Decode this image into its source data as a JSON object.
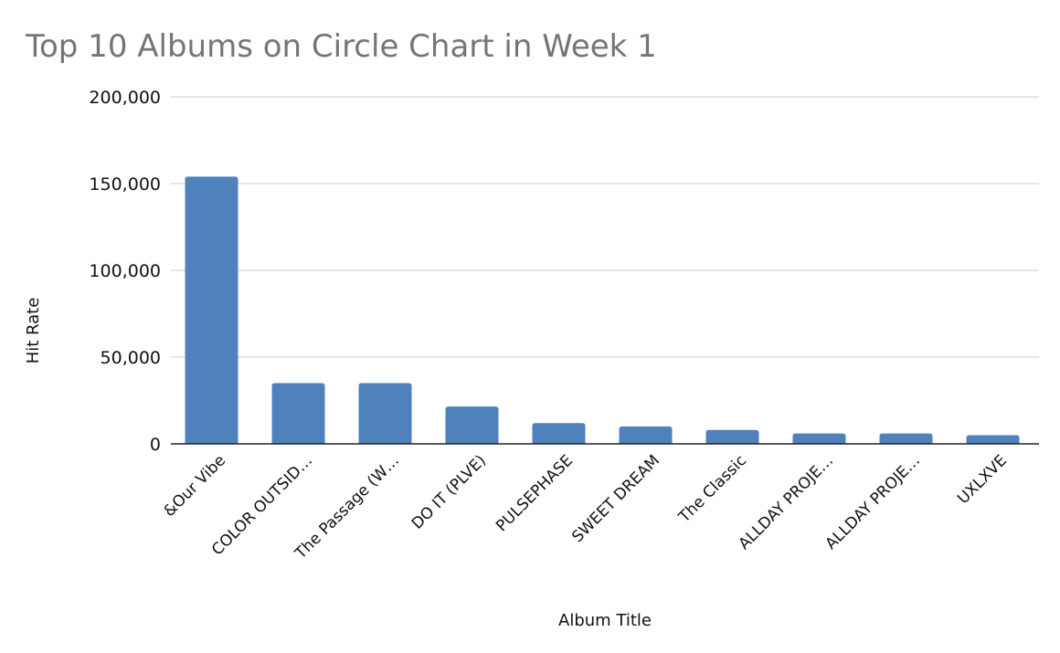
{
  "chart_data": {
    "type": "bar",
    "title": "Top 10 Albums on Circle Chart in Week 1",
    "xlabel": "Album Title",
    "ylabel": "Hit Rate",
    "ylim": [
      0,
      200000
    ],
    "yticks": [
      0,
      50000,
      100000,
      150000,
      200000
    ],
    "ytick_labels": [
      "0",
      "50,000",
      "100,000",
      "150,000",
      "200,000"
    ],
    "categories": [
      "&Our Vibe",
      "COLOR OUTSID…",
      "The Passage (W…",
      "DO IT (PLVE)",
      "PULSEPHASE",
      "SWEET DREAM",
      "The Classic",
      "ALLDAY PROJE…",
      "ALLDAY PROJE…",
      "UXLXVE"
    ],
    "values": [
      154000,
      35000,
      35000,
      21500,
      12000,
      10000,
      8000,
      6000,
      6000,
      5000
    ],
    "bar_color": "#4f81bd",
    "grid": true,
    "legend": "none"
  }
}
